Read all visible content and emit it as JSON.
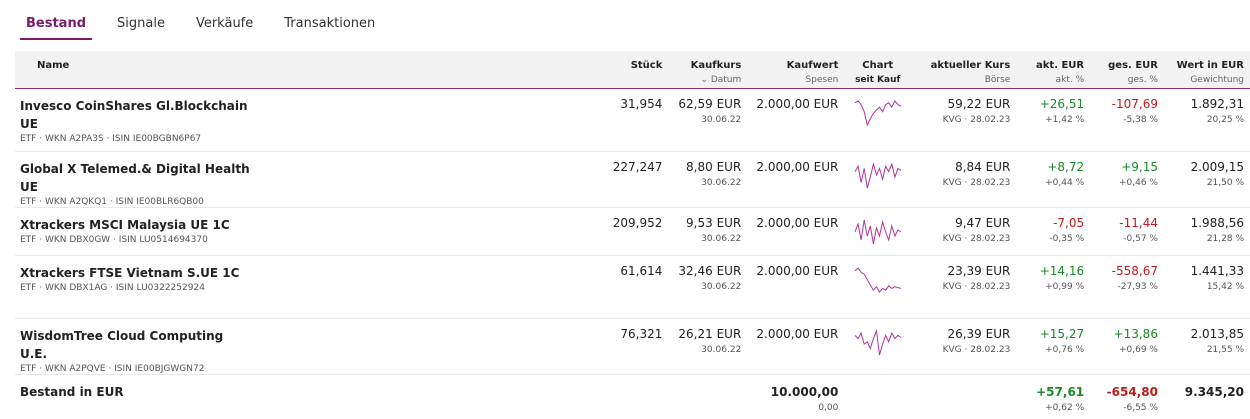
{
  "tabs": [
    {
      "label": "Bestand",
      "active": true
    },
    {
      "label": "Signale",
      "active": false
    },
    {
      "label": "Verkäufe",
      "active": false
    },
    {
      "label": "Transaktionen",
      "active": false
    }
  ],
  "header": {
    "name": "Name",
    "stueck": "Stück",
    "kaufkurs": "Kaufkurs",
    "kaufkurs_sub": "Datum",
    "kaufkurs_sort_icon": "chevron-down-icon",
    "kaufwert": "Kaufwert",
    "kaufwert_sub": "Spesen",
    "chart": "Chart",
    "chart_sub": "seit Kauf",
    "kurs": "aktueller Kurs",
    "kurs_sub": "Börse",
    "akt": "akt. EUR",
    "akt_sub": "akt. %",
    "ges": "ges. EUR",
    "ges_sub": "ges. %",
    "wert": "Wert in EUR",
    "wert_sub": "Gewichtung"
  },
  "rows": [
    {
      "name": "Invesco CoinShares Gl.Blockchain UE",
      "meta": "ETF · WKN A2PA3S · ISIN IE00BGBN6P67",
      "stueck": "31,954",
      "kaufkurs": "62,59 EUR",
      "datum": "30.06.22",
      "kaufwert": "2.000,00 EUR",
      "kurs": "59,22 EUR",
      "boerse": "KVG · 28.02.23",
      "akt": "+26,51",
      "akt_pct": "+1,42 %",
      "ges": "-107,69",
      "ges_pct": "-5,38 %",
      "wert": "1.892,31",
      "gewicht": "20,25 %",
      "spark": [
        60,
        62,
        58,
        50,
        35,
        42,
        48,
        52,
        55,
        50,
        58,
        60,
        55,
        62,
        58,
        56
      ]
    },
    {
      "name": "Global X Telemed.& Digital Health UE",
      "meta": "ETF · WKN A2QKQ1 · ISIN IE00BLR6QB00",
      "stueck": "227,247",
      "kaufkurs": "8,80 EUR",
      "datum": "30.06.22",
      "kaufwert": "2.000,00 EUR",
      "kurs": "8,84 EUR",
      "boerse": "KVG · 28.02.23",
      "akt": "+8,72",
      "akt_pct": "+0,44 %",
      "ges": "+9,15",
      "ges_pct": "+0,46 %",
      "wert": "2.009,15",
      "gewicht": "21,50 %",
      "spark": [
        55,
        60,
        45,
        58,
        40,
        50,
        62,
        52,
        58,
        48,
        60,
        55,
        62,
        50,
        58,
        56
      ]
    },
    {
      "name": "Xtrackers MSCI Malaysia UE 1C",
      "meta": "ETF · WKN DBX0GW · ISIN LU0514694370",
      "stueck": "209,952",
      "kaufkurs": "9,53 EUR",
      "datum": "30.06.22",
      "kaufwert": "2.000,00 EUR",
      "kurs": "9,47 EUR",
      "boerse": "KVG · 28.02.23",
      "akt": "-7,05",
      "akt_pct": "-0,35 %",
      "ges": "-11,44",
      "ges_pct": "-0,57 %",
      "wert": "1.988,56",
      "gewicht": "21,28 %",
      "spark": [
        52,
        56,
        48,
        58,
        50,
        55,
        46,
        54,
        50,
        57,
        52,
        48,
        55,
        50,
        53,
        52
      ]
    },
    {
      "name": "Xtrackers FTSE Vietnam S.UE 1C",
      "meta": "ETF · WKN DBX1AG · ISIN LU0322252924",
      "stueck": "61,614",
      "kaufkurs": "32,46 EUR",
      "datum": "30.06.22",
      "kaufwert": "2.000,00 EUR",
      "kurs": "23,39 EUR",
      "boerse": "KVG · 28.02.23",
      "akt": "+14,16",
      "akt_pct": "+0,99 %",
      "ges": "-558,67",
      "ges_pct": "-27,93 %",
      "wert": "1.441,33",
      "gewicht": "15,42 %",
      "spark": [
        62,
        65,
        60,
        58,
        52,
        46,
        40,
        44,
        38,
        42,
        40,
        45,
        42,
        44,
        43,
        42
      ]
    },
    {
      "name": "WisdomTree Cloud Computing U.E.",
      "meta": "ETF · WKN A2PQVE · ISIN IE00BJGWGN72",
      "stueck": "76,321",
      "kaufkurs": "26,21 EUR",
      "datum": "30.06.22",
      "kaufwert": "2.000,00 EUR",
      "kurs": "26,39 EUR",
      "boerse": "KVG · 28.02.23",
      "akt": "+15,27",
      "akt_pct": "+0,76 %",
      "ges": "+13,86",
      "ges_pct": "+0,69 %",
      "wert": "2.013,85",
      "gewicht": "21,55 %",
      "spark": [
        58,
        55,
        60,
        50,
        52,
        46,
        55,
        62,
        40,
        50,
        58,
        52,
        60,
        55,
        58,
        56
      ]
    }
  ],
  "total": {
    "label": "Bestand in EUR",
    "kaufwert": "10.000,00",
    "spesen": "0,00",
    "akt": "+57,61",
    "akt_pct": "+0,62 %",
    "ges": "-654,80",
    "ges_pct": "-6,55 %",
    "wert": "9.345,20"
  },
  "colors": {
    "accent": "#7a1a6e",
    "positive": "#1a8a2a",
    "negative": "#c01a1a",
    "sparkline": "#b2339c"
  }
}
